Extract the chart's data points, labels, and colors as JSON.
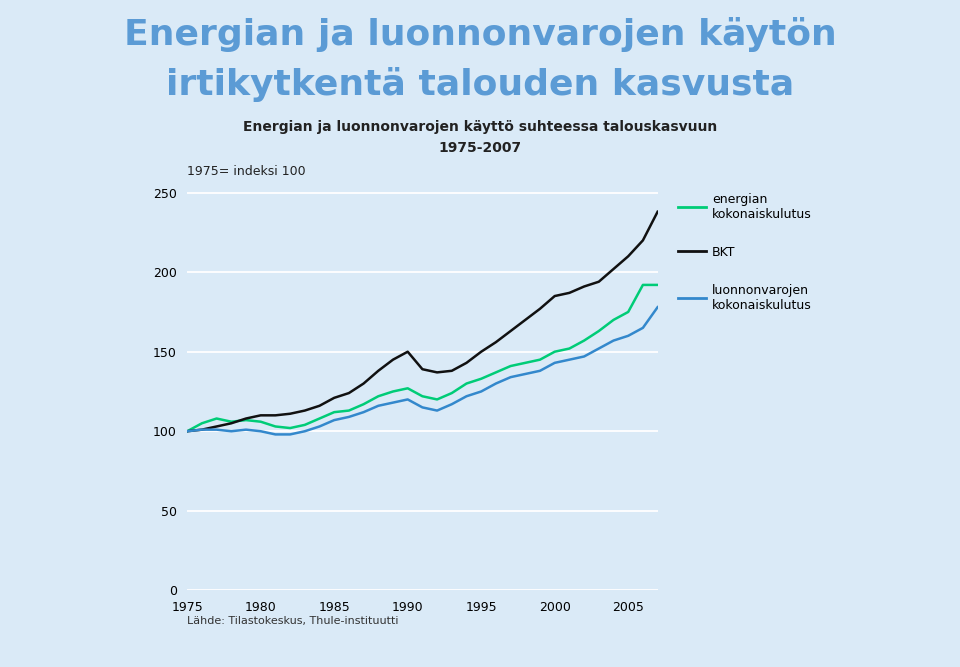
{
  "title_main_line1": "Energian ja luonnonvarojen käytön",
  "title_main_line2": "irtikytkentä talouden kasvusta",
  "title_main_color": "#5b9bd5",
  "subtitle_line1": "Energian ja luonnonvarojen käyttö suhteessa talouskasvuun",
  "subtitle_line2": "1975-2007",
  "ylabel": "1975= indeksi 100",
  "source": "Lähde: Tilastokeskus, Thule-instituutti",
  "background_color": "#daeaf7",
  "ylim": [
    0,
    260
  ],
  "xlim": [
    1975,
    2007
  ],
  "yticks": [
    0,
    50,
    100,
    150,
    200,
    250
  ],
  "xticks": [
    1975,
    1980,
    1985,
    1990,
    1995,
    2000,
    2005
  ],
  "years": [
    1975,
    1976,
    1977,
    1978,
    1979,
    1980,
    1981,
    1982,
    1983,
    1984,
    1985,
    1986,
    1987,
    1988,
    1989,
    1990,
    1991,
    1992,
    1993,
    1994,
    1995,
    1996,
    1997,
    1998,
    1999,
    2000,
    2001,
    2002,
    2003,
    2004,
    2005,
    2006,
    2007
  ],
  "energian_kokonaiskulutus": [
    100,
    105,
    108,
    106,
    107,
    106,
    103,
    102,
    104,
    108,
    112,
    113,
    117,
    122,
    125,
    127,
    122,
    120,
    124,
    130,
    133,
    137,
    141,
    143,
    145,
    150,
    152,
    157,
    163,
    170,
    175,
    192,
    192
  ],
  "BKT": [
    100,
    101,
    103,
    105,
    108,
    110,
    110,
    111,
    113,
    116,
    121,
    124,
    130,
    138,
    145,
    150,
    139,
    137,
    138,
    143,
    150,
    156,
    163,
    170,
    177,
    185,
    187,
    191,
    194,
    202,
    210,
    220,
    238
  ],
  "luonnonvarojen_kokonaiskulutus": [
    100,
    101,
    101,
    100,
    101,
    100,
    98,
    98,
    100,
    103,
    107,
    109,
    112,
    116,
    118,
    120,
    115,
    113,
    117,
    122,
    125,
    130,
    134,
    136,
    138,
    143,
    145,
    147,
    152,
    157,
    160,
    165,
    178
  ],
  "color_energian": "#00cc77",
  "color_BKT": "#111111",
  "color_luonnonvarojen": "#3388cc",
  "legend_label_energian": "energian\nkokonaiskulutus",
  "legend_label_bkt": "BKT",
  "legend_label_luonnon": "luonnonvarojen\nkokonaiskulutus"
}
